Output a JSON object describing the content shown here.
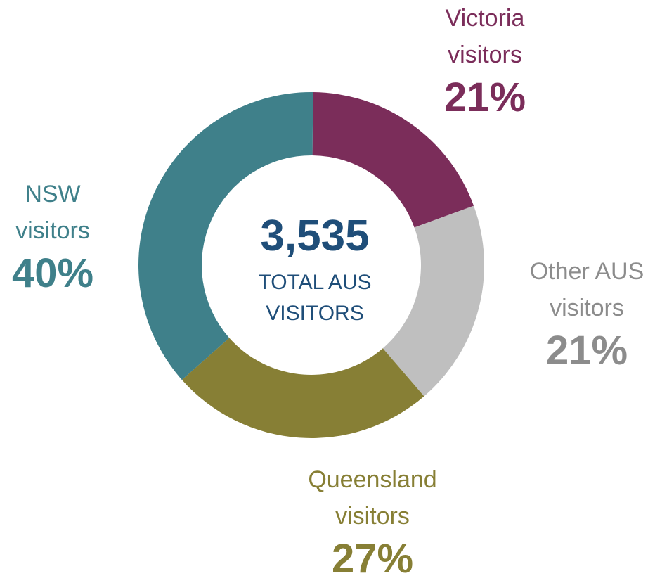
{
  "chart_data": {
    "type": "donut",
    "categories": [
      "Victoria visitors",
      "Other AUS visitors",
      "Queensland visitors",
      "NSW visitors"
    ],
    "values": [
      21,
      21,
      27,
      40
    ],
    "value_labels": [
      "21%",
      "21%",
      "27%",
      "40%"
    ],
    "colors": [
      "#7b2d5a",
      "#bfbfbf",
      "#877f35",
      "#3f808a"
    ],
    "label_colors": [
      "#7b2d5a",
      "#8c8c8c",
      "#877f35",
      "#3f808a"
    ],
    "center_value": {
      "value": 3535,
      "label": "3,535"
    },
    "center_text": "TOTAL AUS VISITORS",
    "center_color": "#1f4e79"
  }
}
